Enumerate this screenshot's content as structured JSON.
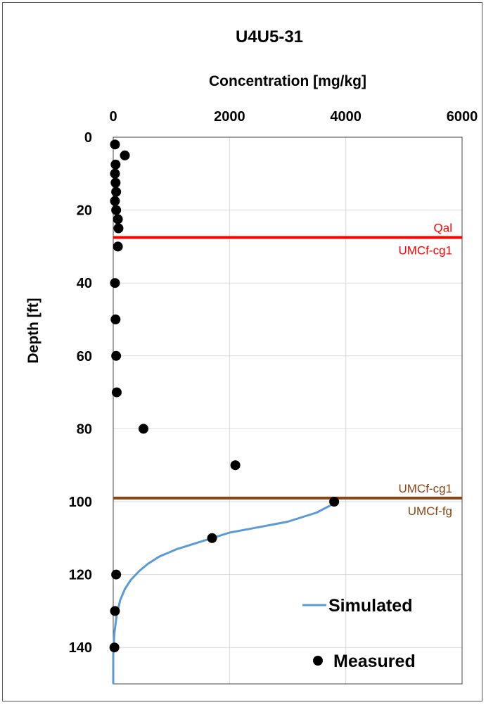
{
  "chart_data": {
    "type": "scatter",
    "title": "U4U5-31",
    "xlabel": "Concentration [mg/kg]",
    "ylabel": "Depth [ft]",
    "xlim": [
      0,
      6000
    ],
    "ylim": [
      0,
      150
    ],
    "y_inverted": true,
    "x_axis_position": "top",
    "xticks": [
      0,
      2000,
      4000,
      6000
    ],
    "yticks": [
      0,
      20,
      40,
      60,
      80,
      100,
      120,
      140
    ],
    "grid": true,
    "legend_position": "bottom-right",
    "series": [
      {
        "name": "Simulated",
        "style": "line",
        "color": "#5b9bd5",
        "x": [
          3800,
          3500,
          3000,
          2500,
          2000,
          1700,
          1400,
          1100,
          800,
          600,
          450,
          300,
          200,
          120,
          60,
          20,
          0,
          0
        ],
        "y": [
          100.5,
          103,
          105.5,
          107,
          108.5,
          110,
          111.5,
          113,
          115,
          117,
          119,
          121.5,
          124,
          127,
          131,
          136,
          142,
          150
        ]
      },
      {
        "name": "Measured",
        "style": "markers",
        "color": "#000000",
        "x": [
          30,
          200,
          40,
          30,
          40,
          50,
          30,
          50,
          80,
          90,
          80,
          30,
          40,
          50,
          60,
          520,
          2100,
          3800,
          1700,
          50,
          30,
          20
        ],
        "y": [
          2,
          5,
          7.5,
          10,
          12.5,
          15,
          17.5,
          20,
          22.5,
          25,
          30,
          40,
          50,
          60,
          70,
          80,
          90,
          100,
          110,
          120,
          130,
          140
        ]
      }
    ],
    "boundaries": [
      {
        "depth": 27.5,
        "color": "#ff0000",
        "label_above": "Qal",
        "label_below": "UMCf-cg1"
      },
      {
        "depth": 99,
        "color": "#8b4513",
        "label_above": "UMCf-cg1",
        "label_below": "UMCf-fg"
      }
    ]
  }
}
